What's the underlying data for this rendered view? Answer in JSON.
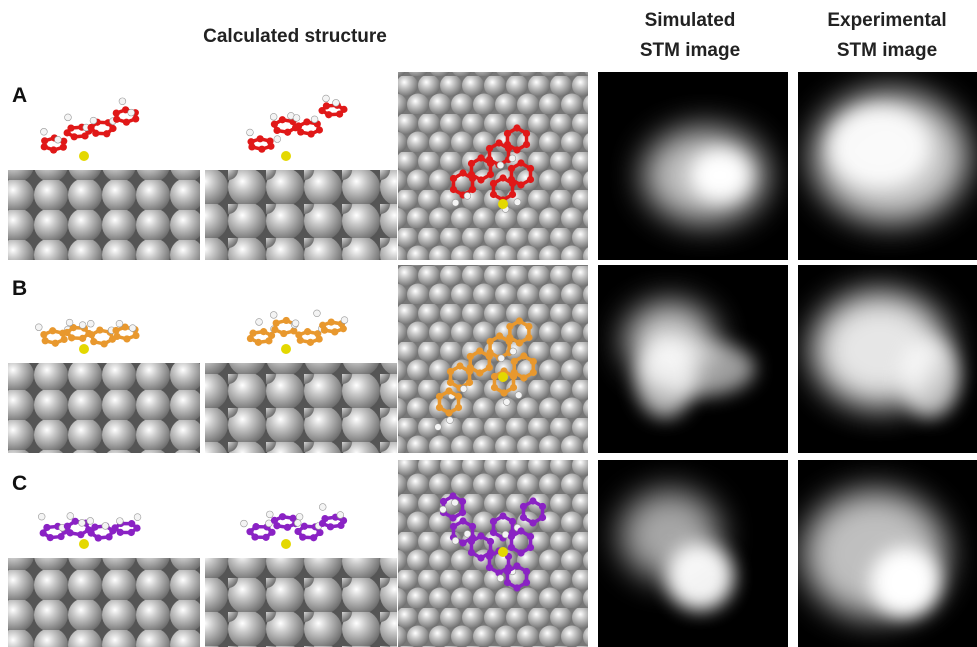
{
  "header": {
    "calculated": "Calculated structure",
    "simulated": [
      "Simulated",
      "STM image"
    ],
    "experimental": [
      "Experimental",
      "STM image"
    ]
  },
  "rows": [
    {
      "label": "A"
    },
    {
      "label": "B"
    },
    {
      "label": "C"
    }
  ]
}
